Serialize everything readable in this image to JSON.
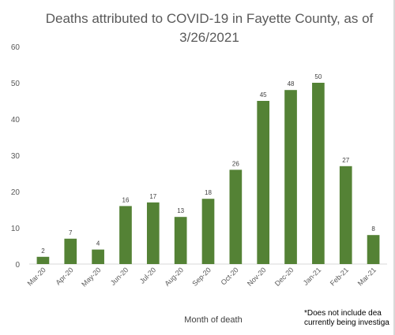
{
  "chart_data": {
    "type": "bar",
    "title_line1": "Deaths attributed to COVID-19 in Fayette County, as of",
    "title_line2": "3/26/2021",
    "xlabel": "Month of death",
    "ylabel": "",
    "ylim": [
      0,
      60
    ],
    "yticks": [
      0,
      10,
      20,
      30,
      40,
      50,
      60
    ],
    "grid": false,
    "data_labels": true,
    "bar_color": "#548235",
    "categories": [
      "Mar-20",
      "Apr-20",
      "May-20",
      "Jun-20",
      "Jul-20",
      "Aug-20",
      "Sep-20",
      "Oct-20",
      "Nov-20",
      "Dec-20",
      "Jan-21",
      "Feb-21",
      "Mar-21"
    ],
    "values": [
      2,
      7,
      4,
      16,
      17,
      13,
      18,
      26,
      45,
      48,
      50,
      27,
      8
    ],
    "footnote_line1": "*Does not include dea",
    "footnote_line2": "currently being investiga"
  }
}
